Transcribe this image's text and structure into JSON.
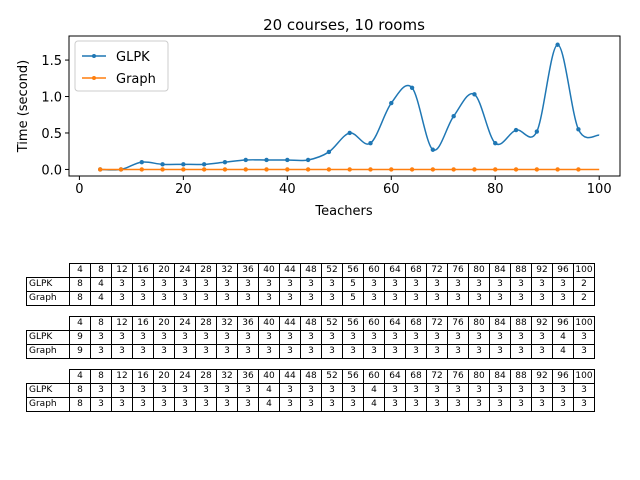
{
  "chart_data": {
    "type": "line",
    "title": "20 courses, 10 rooms",
    "xlabel": "Teachers",
    "ylabel": "Time (second)",
    "xlim": [
      -2,
      104
    ],
    "ylim": [
      -0.09,
      1.83
    ],
    "xticks": [
      0,
      20,
      40,
      60,
      80,
      100
    ],
    "yticks": [
      "0.0",
      "0.5",
      "1.0",
      "1.5"
    ],
    "legend": "top-left",
    "grid": false,
    "x": [
      4,
      8,
      12,
      16,
      20,
      24,
      28,
      32,
      36,
      40,
      44,
      48,
      52,
      56,
      60,
      64,
      68,
      72,
      76,
      80,
      84,
      88,
      92,
      96,
      100
    ],
    "series": [
      {
        "name": "GLPK",
        "color": "#1f77b4",
        "marker_indices": [
          0,
          1,
          2,
          3,
          4,
          5,
          6,
          7,
          8,
          9,
          10,
          11,
          12,
          13,
          14,
          15,
          16,
          17,
          18,
          19,
          20,
          21,
          22,
          23
        ],
        "values": [
          0.0,
          0.0,
          0.1,
          0.07,
          0.07,
          0.07,
          0.1,
          0.13,
          0.13,
          0.13,
          0.13,
          0.24,
          0.5,
          0.36,
          0.91,
          1.12,
          0.27,
          0.73,
          1.03,
          0.36,
          0.54,
          0.52,
          1.71,
          0.55,
          0.47
        ]
      },
      {
        "name": "Graph",
        "color": "#ff7f0e",
        "marker_indices": [
          0,
          1,
          2,
          3,
          4,
          5,
          6,
          7,
          8,
          9,
          10,
          11,
          12,
          13,
          14,
          15,
          16,
          17,
          18,
          19,
          20,
          21,
          22,
          23
        ],
        "values": [
          0.0,
          0.0,
          0.0,
          0.0,
          0.0,
          0.0,
          0.0,
          0.0,
          0.0,
          0.0,
          0.0,
          0.0,
          0.0,
          0.0,
          0.0,
          0.0,
          0.0,
          0.0,
          0.0,
          0.0,
          0.0,
          0.0,
          0.0,
          0.0,
          0.0
        ]
      }
    ]
  },
  "tables": [
    {
      "header": [
        "4",
        "8",
        "12",
        "16",
        "20",
        "24",
        "28",
        "32",
        "36",
        "40",
        "44",
        "48",
        "52",
        "56",
        "60",
        "64",
        "68",
        "72",
        "76",
        "80",
        "84",
        "88",
        "92",
        "96",
        "100"
      ],
      "rows": [
        {
          "label": "GLPK",
          "cells": [
            "8",
            "4",
            "3",
            "3",
            "3",
            "3",
            "3",
            "3",
            "3",
            "3",
            "3",
            "3",
            "3",
            "5",
            "3",
            "3",
            "3",
            "3",
            "3",
            "3",
            "3",
            "3",
            "3",
            "3",
            "2"
          ]
        },
        {
          "label": "Graph",
          "cells": [
            "8",
            "4",
            "3",
            "3",
            "3",
            "3",
            "3",
            "3",
            "3",
            "3",
            "3",
            "3",
            "3",
            "5",
            "3",
            "3",
            "3",
            "3",
            "3",
            "3",
            "3",
            "3",
            "3",
            "3",
            "2"
          ]
        }
      ]
    },
    {
      "header": [
        "4",
        "8",
        "12",
        "16",
        "20",
        "24",
        "28",
        "32",
        "36",
        "40",
        "44",
        "48",
        "52",
        "56",
        "60",
        "64",
        "68",
        "72",
        "76",
        "80",
        "84",
        "88",
        "92",
        "96",
        "100"
      ],
      "rows": [
        {
          "label": "GLPK",
          "cells": [
            "9",
            "3",
            "3",
            "3",
            "3",
            "3",
            "3",
            "3",
            "3",
            "3",
            "3",
            "3",
            "3",
            "3",
            "3",
            "3",
            "3",
            "3",
            "3",
            "3",
            "3",
            "3",
            "3",
            "4",
            "3"
          ]
        },
        {
          "label": "Graph",
          "cells": [
            "9",
            "3",
            "3",
            "3",
            "3",
            "3",
            "3",
            "3",
            "3",
            "3",
            "3",
            "3",
            "3",
            "3",
            "3",
            "3",
            "3",
            "3",
            "3",
            "3",
            "3",
            "3",
            "3",
            "4",
            "3"
          ]
        }
      ]
    },
    {
      "header": [
        "4",
        "8",
        "12",
        "16",
        "20",
        "24",
        "28",
        "32",
        "36",
        "40",
        "44",
        "48",
        "52",
        "56",
        "60",
        "64",
        "68",
        "72",
        "76",
        "80",
        "84",
        "88",
        "92",
        "96",
        "100"
      ],
      "rows": [
        {
          "label": "GLPK",
          "cells": [
            "8",
            "3",
            "3",
            "3",
            "3",
            "3",
            "3",
            "3",
            "3",
            "4",
            "3",
            "3",
            "3",
            "3",
            "4",
            "3",
            "3",
            "3",
            "3",
            "3",
            "3",
            "3",
            "3",
            "3",
            "3"
          ]
        },
        {
          "label": "Graph",
          "cells": [
            "8",
            "3",
            "3",
            "3",
            "3",
            "3",
            "3",
            "3",
            "3",
            "4",
            "3",
            "3",
            "3",
            "3",
            "4",
            "3",
            "3",
            "3",
            "3",
            "3",
            "3",
            "3",
            "3",
            "3",
            "3"
          ]
        }
      ]
    }
  ]
}
